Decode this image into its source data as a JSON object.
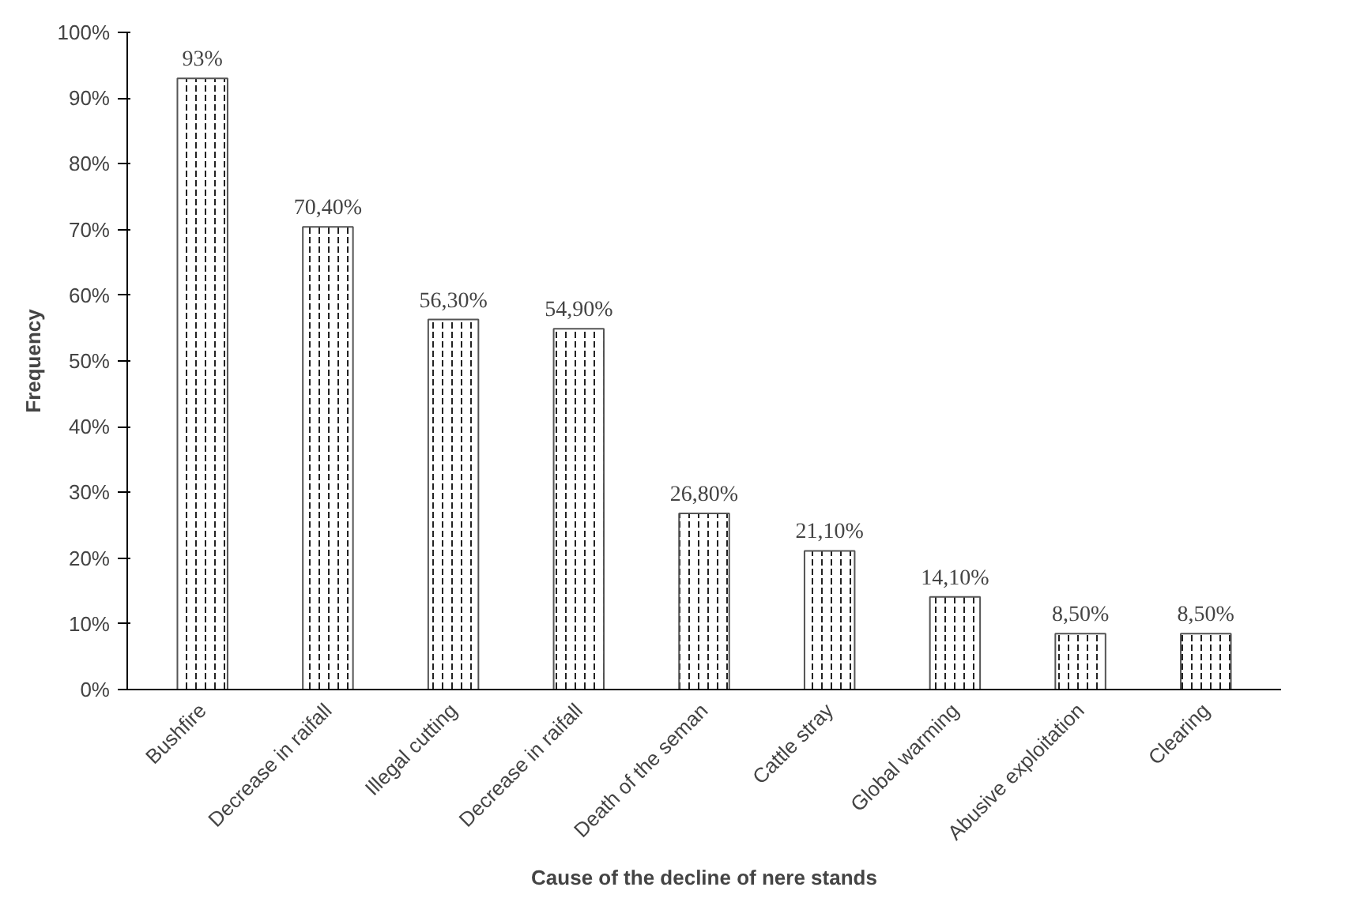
{
  "chart_data": {
    "type": "bar",
    "xlabel": "Cause of the decline of nere stands",
    "ylabel": "Frequency",
    "categories": [
      "Bushfire",
      "Decrease in raifall",
      "Illegal cutting",
      "Decrease in raifall",
      "Death of the seman",
      "Cattle stray",
      "Global warming",
      "Abusive exploitation",
      "Clearing"
    ],
    "values": [
      93,
      70.4,
      56.3,
      54.9,
      26.8,
      21.1,
      14.1,
      8.5,
      8.5
    ],
    "value_labels": [
      "93%",
      "70,40%",
      "56,30%",
      "54,90%",
      "26,80%",
      "21,10%",
      "14,10%",
      "8,50%",
      "8,50%"
    ],
    "color": "#ffffff",
    "ylim": [
      0,
      100
    ],
    "yticks": [
      {
        "value": 0,
        "label": "0%"
      },
      {
        "value": 10,
        "label": "10%"
      },
      {
        "value": 20,
        "label": "20%"
      },
      {
        "value": 30,
        "label": "30%"
      },
      {
        "value": 40,
        "label": "40%"
      },
      {
        "value": 50,
        "label": "50%"
      },
      {
        "value": 60,
        "label": "60%"
      },
      {
        "value": 70,
        "label": "70%"
      },
      {
        "value": 80,
        "label": "80%"
      },
      {
        "value": 90,
        "label": "90%"
      },
      {
        "value": 100,
        "label": "100%"
      }
    ],
    "grid": false
  }
}
